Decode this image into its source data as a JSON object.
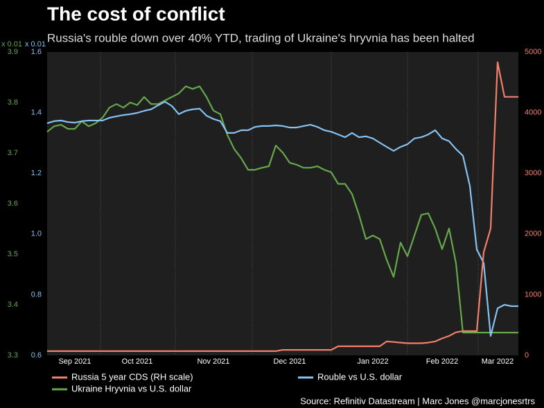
{
  "chart_data": {
    "type": "line",
    "title": "The cost of conflict",
    "subtitle": "Russia's rouble down over 40% YTD, trading of Ukraine's hryvnia has been halted",
    "source": "Source: Refinitiv Datastream | Marc Jones @marcjonesrtrs",
    "categories": [
      null,
      null,
      null,
      null,
      "Sep 2021",
      null,
      null,
      null,
      null,
      null,
      null,
      null,
      null,
      "Oct 2021",
      null,
      null,
      null,
      null,
      null,
      null,
      null,
      null,
      null,
      null,
      "Nov 2021",
      null,
      null,
      null,
      null,
      null,
      null,
      null,
      null,
      null,
      null,
      "Dec 2021",
      null,
      null,
      null,
      null,
      null,
      null,
      null,
      null,
      null,
      null,
      null,
      "Jan 2022",
      null,
      null,
      null,
      null,
      null,
      null,
      null,
      null,
      null,
      "Feb 2022",
      null,
      null,
      null,
      null,
      null,
      null,
      null,
      "Mar 2022",
      null,
      null,
      null
    ],
    "ylabel": "x 0.01",
    "ylim": [
      0.6,
      1.6
    ],
    "yticks": [
      0.6,
      0.8,
      {
        "value": 1,
        "label": "1.0"
      },
      1.2,
      1.4,
      1.6
    ],
    "y3label": "x 0.01",
    "y3lim": [
      3.3,
      3.9
    ],
    "y3ticks": [
      3.3,
      3.4,
      3.5,
      3.6,
      3.7,
      3.8,
      3.9
    ],
    "y2lim": [
      0,
      5000
    ],
    "y2ticks": [
      0,
      1000,
      2000,
      3000,
      4000,
      5000
    ],
    "series": [
      {
        "name": "Russia 5 year CDS (RH scale)",
        "color": "#f47f6b",
        "axis": "y2",
        "values": [
          70,
          70,
          70,
          70,
          70,
          70,
          70,
          70,
          70,
          70,
          70,
          70,
          70,
          70,
          70,
          70,
          70,
          70,
          70,
          70,
          70,
          70,
          70,
          70,
          70,
          70,
          70,
          70,
          70,
          70,
          70,
          70,
          70,
          70,
          90,
          90,
          90,
          90,
          90,
          90,
          90,
          90,
          150,
          150,
          150,
          150,
          150,
          150,
          150,
          230,
          220,
          210,
          200,
          200,
          200,
          210,
          230,
          280,
          320,
          380,
          400,
          400,
          400,
          1700,
          2090,
          4830,
          4260,
          4260,
          4260
        ]
      },
      {
        "name": "Rouble vs U.S. dollar",
        "color": "#86c3f2",
        "axis": "y",
        "values": [
          1.365,
          1.372,
          1.374,
          1.369,
          1.367,
          1.372,
          1.374,
          1.374,
          1.374,
          1.383,
          1.388,
          1.392,
          1.395,
          1.399,
          1.406,
          1.411,
          1.424,
          1.436,
          1.422,
          1.395,
          1.406,
          1.411,
          1.413,
          1.39,
          1.379,
          1.372,
          1.333,
          1.333,
          1.342,
          1.342,
          1.353,
          1.356,
          1.356,
          1.358,
          1.356,
          1.351,
          1.351,
          1.356,
          1.36,
          1.353,
          1.342,
          1.337,
          1.328,
          1.319,
          1.333,
          1.319,
          1.322,
          1.315,
          1.301,
          1.287,
          1.274,
          1.287,
          1.296,
          1.315,
          1.319,
          1.328,
          1.342,
          1.315,
          1.306,
          1.28,
          1.258,
          1.159,
          0.949,
          0.904,
          0.664,
          0.755,
          0.767,
          0.762,
          0.762
        ]
      },
      {
        "name": "Ukraine Hryvnia vs U.S. dollar",
        "color": "#66a84c",
        "axis": "y3",
        "values": [
          3.742,
          3.753,
          3.756,
          3.748,
          3.748,
          3.763,
          3.753,
          3.759,
          3.77,
          3.79,
          3.797,
          3.79,
          3.8,
          3.795,
          3.811,
          3.797,
          3.797,
          3.804,
          3.811,
          3.818,
          3.832,
          3.827,
          3.832,
          3.811,
          3.784,
          3.777,
          3.736,
          3.708,
          3.69,
          3.667,
          3.667,
          3.671,
          3.674,
          3.715,
          3.701,
          3.681,
          3.677,
          3.671,
          3.671,
          3.674,
          3.667,
          3.662,
          3.639,
          3.639,
          3.619,
          3.578,
          3.53,
          3.537,
          3.53,
          3.489,
          3.455,
          3.523,
          3.496,
          3.537,
          3.578,
          3.581,
          3.551,
          3.51,
          3.551,
          3.482,
          3.345,
          3.345,
          3.345,
          3.345,
          3.345,
          3.345,
          3.345,
          3.345,
          3.345
        ]
      }
    ]
  }
}
